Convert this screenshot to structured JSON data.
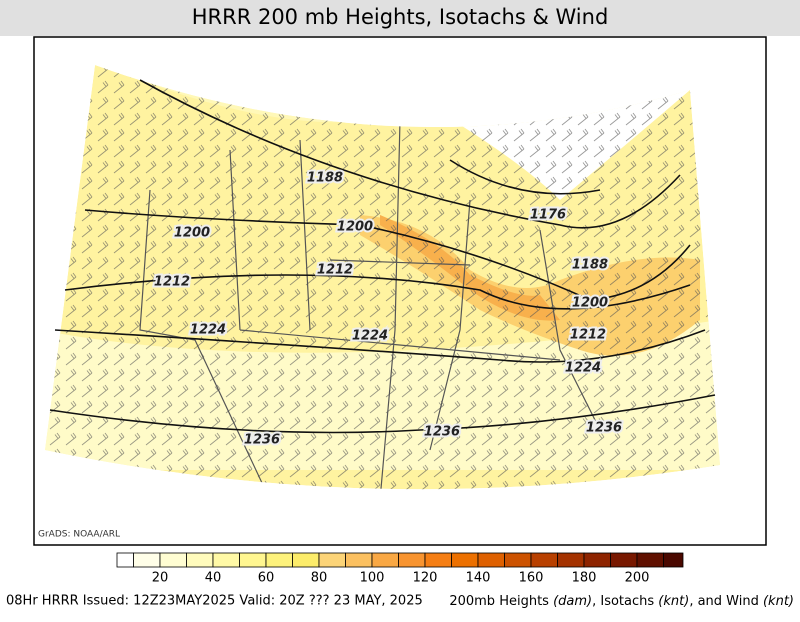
{
  "title": "HRRR 200 mb Heights, Isotachs & Wind",
  "credit": "GrADS: NOAA/ARL",
  "contour_labels": [
    1188,
    1176,
    1200,
    1200,
    1188,
    1212,
    1212,
    1200,
    1224,
    1224,
    1212,
    1224,
    1236,
    1236,
    1236
  ],
  "colorbar": {
    "colors": [
      "#ffffff",
      "#fffee8",
      "#fffdd2",
      "#fffbbc",
      "#fff9a6",
      "#fff690",
      "#fdf27c",
      "#fcec6a",
      "#fcd478",
      "#fbc060",
      "#f9a844",
      "#f89430",
      "#f57e14",
      "#ec7000",
      "#de6000",
      "#cc5200",
      "#b84000",
      "#a43200",
      "#8e2400",
      "#781800",
      "#601000",
      "#4a0800"
    ],
    "labels": [
      20,
      40,
      60,
      80,
      100,
      120,
      140,
      160,
      180,
      200
    ]
  },
  "footer_left": "08Hr HRRR Issued: 12Z23MAY2025 Valid: 20Z ??? 23 MAY, 2025",
  "footer_right": [
    "200mb Heights ",
    "(dam)",
    ", Isotachs ",
    "(knt)",
    ", and Wind ",
    "(knt)"
  ]
}
